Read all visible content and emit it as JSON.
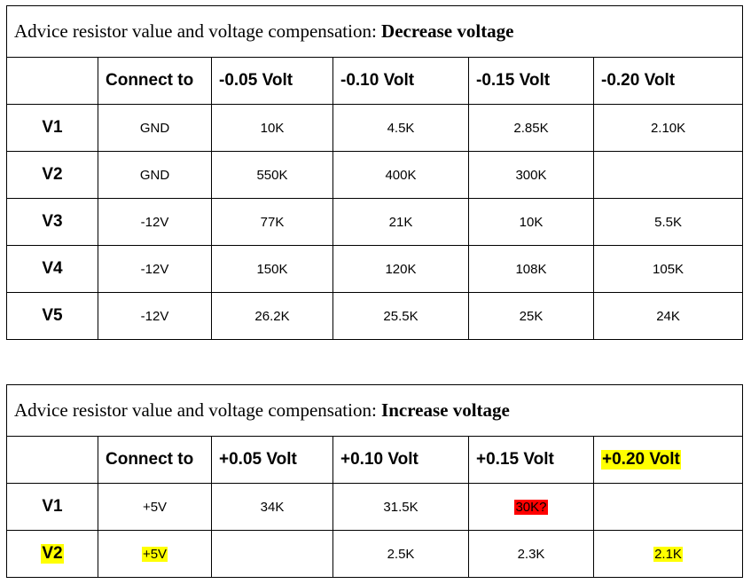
{
  "decrease": {
    "title_prefix": "Advice resistor value and voltage compensation: ",
    "title_bold": "Decrease voltage",
    "headers": [
      "",
      "Connect to",
      "-0.05 Volt",
      "-0.10 Volt",
      "-0.15 Volt",
      "-0.20 Volt"
    ],
    "rows": [
      [
        "V1",
        "GND",
        "10K",
        "4.5K",
        "2.85K",
        "2.10K"
      ],
      [
        "V2",
        "GND",
        "550K",
        "400K",
        "300K",
        ""
      ],
      [
        "V3",
        "-12V",
        "77K",
        "21K",
        "10K",
        "5.5K"
      ],
      [
        "V4",
        "-12V",
        "150K",
        "120K",
        "108K",
        "105K"
      ],
      [
        "V5",
        "-12V",
        "26.2K",
        "25.5K",
        "25K",
        "24K"
      ]
    ]
  },
  "increase": {
    "title_prefix": "Advice resistor value and voltage compensation: ",
    "title_bold": "Increase voltage",
    "headers": [
      "",
      "Connect to",
      "+0.05 Volt",
      "+0.10 Volt",
      "+0.15 Volt",
      "+0.20 Volt"
    ],
    "rows": [
      [
        "V1",
        "+5V",
        "34K",
        "31.5K",
        "30K?",
        ""
      ],
      [
        "V2",
        "+5V",
        "",
        "2.5K",
        "2.3K",
        "2.1K"
      ]
    ]
  },
  "highlight_colors": {
    "yellow": "#ffff00",
    "red": "#ff0000"
  }
}
